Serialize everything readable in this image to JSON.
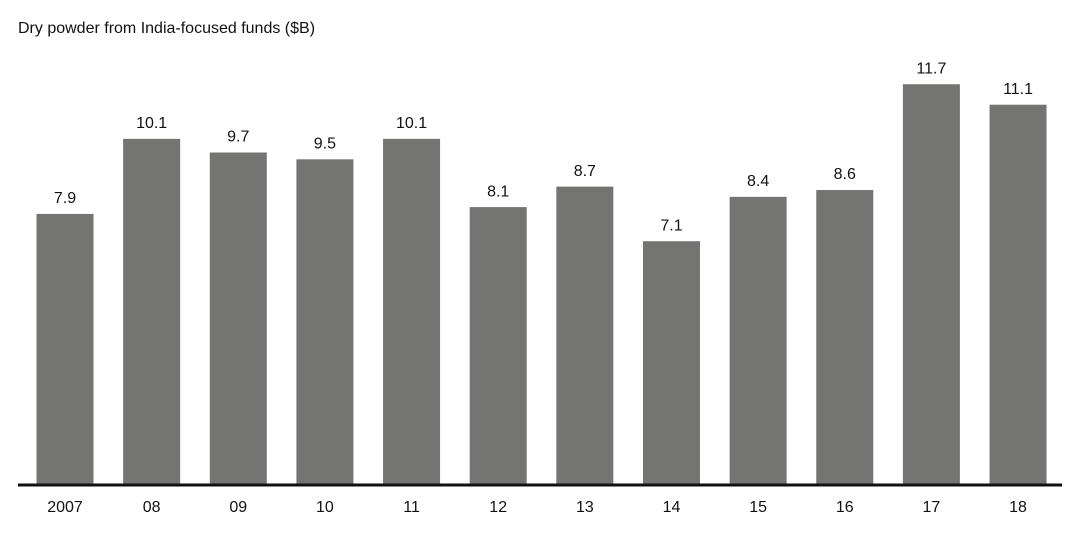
{
  "chart_data": {
    "type": "bar",
    "title": "Dry powder from India-focused funds ($B)",
    "categories": [
      "2007",
      "08",
      "09",
      "10",
      "11",
      "12",
      "13",
      "14",
      "15",
      "16",
      "17",
      "18"
    ],
    "values": [
      7.9,
      10.1,
      9.7,
      9.5,
      10.1,
      8.1,
      8.7,
      7.1,
      8.4,
      8.6,
      11.7,
      11.1
    ],
    "color": "#747573",
    "ylim": [
      0,
      12
    ]
  }
}
